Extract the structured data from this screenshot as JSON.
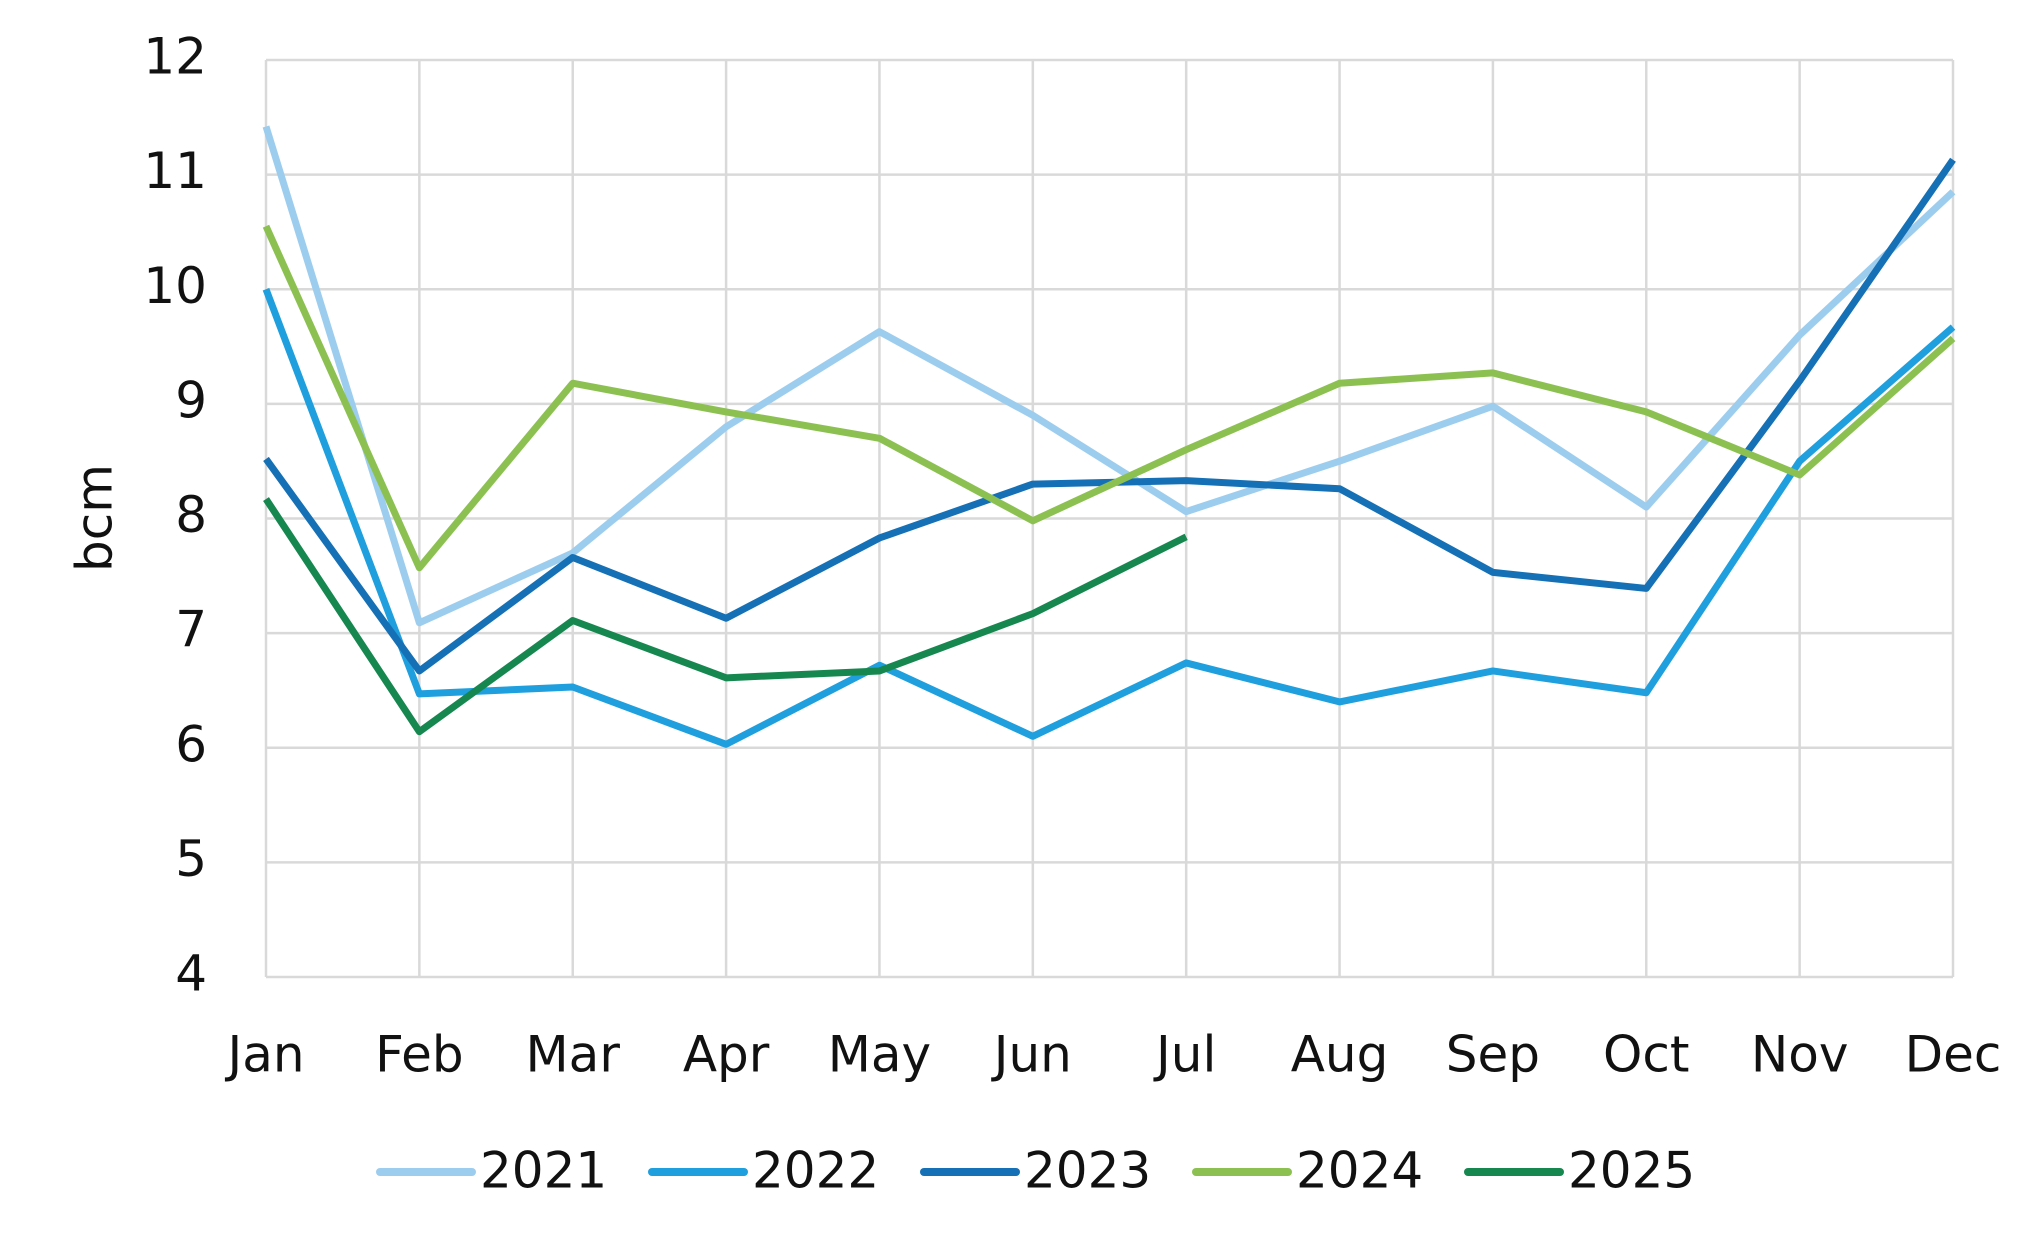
{
  "chart_data": {
    "type": "line",
    "y_label": "bcm",
    "categories": [
      "Jan",
      "Feb",
      "Mar",
      "Apr",
      "May",
      "Jun",
      "Jul",
      "Aug",
      "Sep",
      "Oct",
      "Nov",
      "Dec"
    ],
    "series": [
      {
        "name": "2021",
        "color": "#9dcdee",
        "values": [
          11.42,
          7.09,
          7.7,
          8.8,
          9.63,
          8.9,
          8.06,
          8.5,
          8.98,
          8.1,
          9.6,
          10.85
        ]
      },
      {
        "name": "2022",
        "color": "#1f9fde",
        "values": [
          10.0,
          6.47,
          6.53,
          6.03,
          6.72,
          6.1,
          6.74,
          6.4,
          6.67,
          6.48,
          8.5,
          9.67
        ]
      },
      {
        "name": "2023",
        "color": "#1570b5",
        "values": [
          8.52,
          6.67,
          7.66,
          7.13,
          7.83,
          8.3,
          8.33,
          8.26,
          7.53,
          7.39,
          9.2,
          11.13
        ]
      },
      {
        "name": "2024",
        "color": "#8cc152",
        "values": [
          10.55,
          7.57,
          9.18,
          8.93,
          8.7,
          7.98,
          8.6,
          9.18,
          9.27,
          8.93,
          8.38,
          9.57
        ]
      },
      {
        "name": "2025",
        "color": "#178750",
        "values": [
          8.17,
          6.14,
          7.11,
          6.61,
          6.67,
          7.17,
          7.84,
          null,
          null,
          null,
          null,
          null
        ]
      }
    ],
    "ylim": [
      4,
      12
    ],
    "yticks": [
      4,
      5,
      6,
      7,
      8,
      9,
      10,
      11,
      12
    ],
    "grid": true,
    "legend": "bottom"
  }
}
